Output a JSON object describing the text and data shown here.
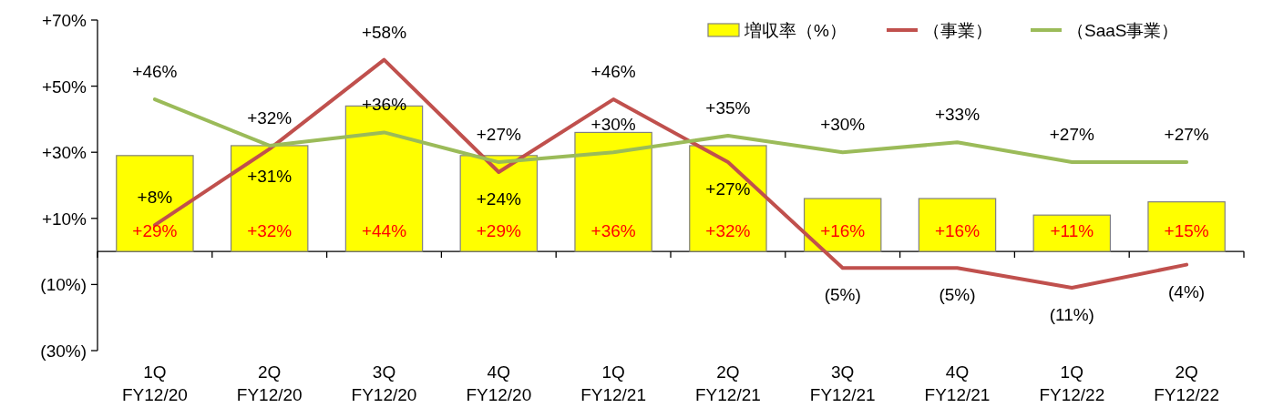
{
  "chart_data": {
    "type": "bar",
    "categories": [
      "1Q\nFY12/20",
      "2Q\nFY12/20",
      "3Q\nFY12/20",
      "4Q\nFY12/20",
      "1Q\nFY12/21",
      "2Q\nFY12/21",
      "3Q\nFY12/21",
      "4Q\nFY12/21",
      "1Q\nFY12/22",
      "2Q\nFY12/22"
    ],
    "series": [
      {
        "name": "増収率（%）",
        "color": "#ffff00",
        "values": [
          29,
          32,
          44,
          29,
          36,
          32,
          16,
          16,
          11,
          15
        ],
        "value_labels": [
          "+29%",
          "+32%",
          "+44%",
          "+29%",
          "+36%",
          "+32%",
          "+16%",
          "+16%",
          "+11%",
          "+15%"
        ]
      },
      {
        "name": "（事業）",
        "type": "line",
        "color": "#c0504d",
        "values": [
          8,
          31,
          58,
          24,
          46,
          27,
          -5,
          -5,
          -11,
          -4
        ],
        "value_labels": [
          "+8%",
          "+31%",
          "+58%",
          "+24%",
          "+46%",
          "+27%",
          "(5%)",
          "(5%)",
          "(11%)",
          "(4%)"
        ]
      },
      {
        "name": "（SaaS事業）",
        "type": "line",
        "color": "#9bbb59",
        "values": [
          46,
          32,
          36,
          27,
          30,
          35,
          30,
          33,
          27,
          27
        ],
        "value_labels": [
          "+46%",
          "+32%",
          "+36%",
          "+27%",
          "+30%",
          "+35%",
          "+30%",
          "+33%",
          "+27%",
          "+27%"
        ]
      }
    ],
    "ylim": [
      -30,
      70
    ],
    "yticks": [
      {
        "value": -30,
        "label": "(30%)"
      },
      {
        "value": -10,
        "label": "(10%)"
      },
      {
        "value": 10,
        "label": "+10%"
      },
      {
        "value": 30,
        "label": "+30%"
      },
      {
        "value": 50,
        "label": "+50%"
      },
      {
        "value": 70,
        "label": "+70%"
      }
    ],
    "legend": "top right"
  }
}
